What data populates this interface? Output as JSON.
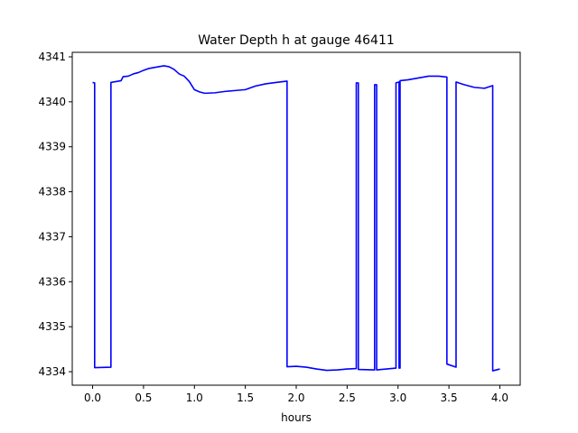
{
  "chart_data": {
    "type": "line",
    "title": "Water Depth h at gauge 46411",
    "xlabel": "hours",
    "ylabel": "",
    "xlim": [
      -0.2,
      4.2
    ],
    "ylim": [
      4333.7,
      4341.1
    ],
    "x_ticks": [
      0.0,
      0.5,
      1.0,
      1.5,
      2.0,
      2.5,
      3.0,
      3.5,
      4.0
    ],
    "x_tick_labels": [
      "0.0",
      "0.5",
      "1.0",
      "1.5",
      "2.0",
      "2.5",
      "3.0",
      "3.5",
      "4.0"
    ],
    "y_ticks": [
      4334,
      4335,
      4336,
      4337,
      4338,
      4339,
      4340,
      4341
    ],
    "y_tick_labels": [
      "4334",
      "4335",
      "4336",
      "4337",
      "4338",
      "4339",
      "4340",
      "4341"
    ],
    "grid": false,
    "series": [
      {
        "color": "#0000ff",
        "x": [
          0.0,
          0.02,
          0.02,
          0.18,
          0.18,
          0.28,
          0.3,
          0.35,
          0.4,
          0.45,
          0.5,
          0.55,
          0.6,
          0.65,
          0.7,
          0.75,
          0.8,
          0.85,
          0.9,
          0.95,
          1.0,
          1.05,
          1.1,
          1.2,
          1.3,
          1.4,
          1.5,
          1.6,
          1.7,
          1.8,
          1.91,
          1.91,
          2.0,
          2.1,
          2.2,
          2.3,
          2.4,
          2.5,
          2.59,
          2.59,
          2.61,
          2.61,
          2.77,
          2.77,
          2.79,
          2.79,
          2.98,
          2.98,
          3.01,
          3.01,
          3.02,
          3.02,
          3.1,
          3.2,
          3.3,
          3.4,
          3.48,
          3.48,
          3.57,
          3.57,
          3.65,
          3.75,
          3.85,
          3.93,
          3.93,
          4.0
        ],
        "y": [
          4340.43,
          4340.42,
          4334.09,
          4334.1,
          4340.43,
          4340.47,
          4340.56,
          4340.57,
          4340.62,
          4340.65,
          4340.7,
          4340.74,
          4340.76,
          4340.78,
          4340.8,
          4340.78,
          4340.72,
          4340.62,
          4340.57,
          4340.45,
          4340.27,
          4340.22,
          4340.19,
          4340.2,
          4340.23,
          4340.25,
          4340.27,
          4340.35,
          4340.4,
          4340.43,
          4340.46,
          4334.11,
          4334.12,
          4334.1,
          4334.06,
          4334.03,
          4334.04,
          4334.06,
          4334.07,
          4340.42,
          4340.42,
          4334.05,
          4334.04,
          4340.38,
          4340.38,
          4334.04,
          4334.08,
          4340.42,
          4340.44,
          4334.08,
          4334.08,
          4340.47,
          4340.49,
          4340.53,
          4340.57,
          4340.57,
          4340.55,
          4334.17,
          4334.1,
          4340.44,
          4340.38,
          4340.32,
          4340.3,
          4340.36,
          4334.02,
          4334.06
        ]
      }
    ]
  }
}
